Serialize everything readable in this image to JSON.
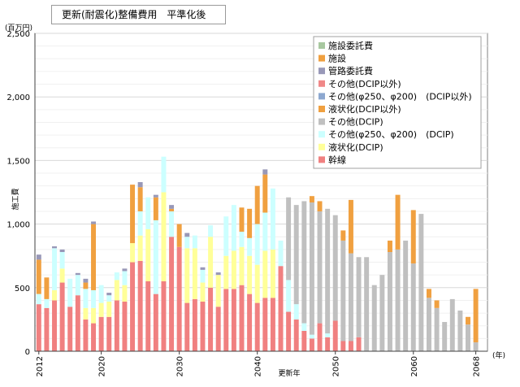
{
  "chart_data": {
    "type": "bar",
    "stacked": true,
    "title": "更新(耐震化)整備費用　平準化後",
    "ylabel": "施工費",
    "yunit": "(百万円)",
    "xlabel": "更新年",
    "xunit": "(年)",
    "ylim": [
      0,
      2500
    ],
    "yticks": [
      "0",
      "500",
      "1,000",
      "1,500",
      "2,000",
      "2,500"
    ],
    "xlim": [
      2011.5,
      2069.5
    ],
    "xticks": [
      "2012",
      "2020",
      "2030",
      "2040",
      "2050",
      "2060",
      "2068"
    ],
    "grid": true,
    "legend_position": "top-right",
    "x": [
      2012,
      2013,
      2014,
      2015,
      2016,
      2017,
      2018,
      2019,
      2020,
      2021,
      2022,
      2023,
      2024,
      2025,
      2026,
      2027,
      2028,
      2029,
      2030,
      2031,
      2032,
      2033,
      2034,
      2035,
      2036,
      2037,
      2038,
      2039,
      2040,
      2041,
      2042,
      2043,
      2044,
      2045,
      2046,
      2047,
      2048,
      2049,
      2050,
      2051,
      2052,
      2053,
      2054,
      2055,
      2056,
      2057,
      2058,
      2059,
      2060,
      2061,
      2062,
      2063,
      2064,
      2065,
      2066,
      2067,
      2068
    ],
    "series": [
      {
        "name": "幹線",
        "color": "#f08080",
        "values": [
          370,
          340,
          400,
          540,
          350,
          440,
          250,
          220,
          270,
          270,
          400,
          390,
          700,
          710,
          550,
          450,
          550,
          900,
          820,
          380,
          410,
          390,
          500,
          350,
          490,
          490,
          520,
          450,
          380,
          420,
          420,
          670,
          310,
          250,
          160,
          100,
          220,
          110,
          240,
          80,
          80,
          110,
          0,
          0,
          0,
          0,
          0,
          0,
          0,
          0,
          0,
          0,
          0,
          0,
          0,
          0,
          0
        ]
      },
      {
        "name": "液状化(DCIP)",
        "color": "#ffff99",
        "values": [
          0,
          0,
          80,
          110,
          0,
          0,
          90,
          120,
          110,
          120,
          160,
          130,
          150,
          200,
          410,
          0,
          700,
          0,
          0,
          430,
          400,
          150,
          400,
          250,
          260,
          300,
          300,
          300,
          300,
          370,
          380,
          0,
          0,
          0,
          0,
          0,
          0,
          0,
          0,
          0,
          0,
          0,
          0,
          0,
          0,
          0,
          0,
          0,
          0,
          0,
          0,
          0,
          0,
          0,
          0,
          0,
          0
        ]
      },
      {
        "name": "その他(φ250、φ200)　(DCIP)",
        "color": "#ccffff",
        "values": [
          80,
          70,
          330,
          130,
          220,
          160,
          150,
          140,
          140,
          50,
          60,
          110,
          0,
          190,
          250,
          580,
          280,
          200,
          0,
          90,
          100,
          100,
          90,
          0,
          310,
          360,
          120,
          140,
          320,
          300,
          480,
          200,
          250,
          120,
          60,
          30,
          0,
          30,
          0,
          0,
          0,
          0,
          0,
          0,
          0,
          0,
          0,
          0,
          0,
          0,
          0,
          0,
          0,
          0,
          0,
          0,
          0
        ]
      },
      {
        "name": "その他(DCIP)",
        "color": "#c0c0c0",
        "values": [
          0,
          0,
          0,
          0,
          0,
          0,
          0,
          0,
          0,
          0,
          0,
          0,
          0,
          0,
          0,
          0,
          0,
          0,
          0,
          0,
          0,
          0,
          0,
          0,
          0,
          0,
          0,
          0,
          0,
          0,
          0,
          0,
          650,
          780,
          960,
          1040,
          880,
          980,
          830,
          790,
          690,
          630,
          740,
          520,
          600,
          780,
          800,
          870,
          690,
          1080,
          420,
          340,
          230,
          410,
          320,
          210,
          70
        ]
      },
      {
        "name": "液状化(DCIP以外)",
        "color": "#f0a040",
        "values": [
          270,
          170,
          0,
          0,
          0,
          0,
          50,
          520,
          0,
          0,
          0,
          0,
          460,
          190,
          0,
          180,
          0,
          20,
          180,
          0,
          0,
          0,
          0,
          0,
          0,
          0,
          190,
          230,
          300,
          300,
          0,
          0,
          0,
          0,
          0,
          50,
          80,
          0,
          0,
          80,
          420,
          0,
          0,
          0,
          0,
          90,
          430,
          0,
          420,
          0,
          70,
          60,
          0,
          0,
          0,
          60,
          420
        ]
      },
      {
        "name": "その他(φ250、φ200)　(DCIP以外)",
        "color": "#8da8d0",
        "values": [
          0,
          0,
          0,
          0,
          0,
          0,
          0,
          0,
          0,
          0,
          0,
          0,
          0,
          0,
          0,
          0,
          0,
          0,
          0,
          0,
          0,
          0,
          0,
          0,
          0,
          0,
          0,
          0,
          0,
          0,
          0,
          0,
          0,
          0,
          0,
          0,
          0,
          0,
          0,
          0,
          0,
          0,
          0,
          0,
          0,
          0,
          0,
          0,
          0,
          0,
          0,
          0,
          0,
          0,
          0,
          0,
          0
        ]
      },
      {
        "name": "その他(DCIP以外)",
        "color": "#f08888",
        "values": [
          0,
          0,
          0,
          0,
          0,
          0,
          0,
          0,
          0,
          0,
          0,
          0,
          0,
          0,
          0,
          0,
          0,
          0,
          0,
          0,
          0,
          0,
          0,
          0,
          0,
          0,
          0,
          0,
          0,
          0,
          0,
          0,
          0,
          0,
          0,
          0,
          0,
          0,
          0,
          0,
          0,
          0,
          0,
          0,
          0,
          0,
          0,
          0,
          0,
          0,
          0,
          0,
          0,
          0,
          0,
          0,
          0
        ]
      },
      {
        "name": "管路委託費",
        "color": "#9898b8",
        "values": [
          40,
          0,
          15,
          20,
          0,
          15,
          30,
          20,
          0,
          20,
          0,
          20,
          0,
          40,
          0,
          20,
          0,
          30,
          0,
          30,
          0,
          20,
          0,
          20,
          0,
          0,
          0,
          0,
          0,
          40,
          0,
          0,
          0,
          0,
          0,
          0,
          0,
          0,
          0,
          0,
          0,
          0,
          0,
          0,
          0,
          0,
          0,
          0,
          0,
          0,
          0,
          0,
          0,
          0,
          0,
          0,
          0
        ]
      },
      {
        "name": "施設",
        "color": "#f0a040",
        "values": [
          0,
          0,
          0,
          0,
          0,
          0,
          0,
          0,
          0,
          0,
          0,
          0,
          0,
          0,
          0,
          0,
          0,
          0,
          0,
          0,
          0,
          0,
          0,
          0,
          0,
          0,
          0,
          0,
          0,
          0,
          0,
          0,
          0,
          0,
          0,
          0,
          0,
          0,
          0,
          0,
          0,
          0,
          0,
          0,
          0,
          0,
          0,
          0,
          0,
          0,
          0,
          0,
          0,
          0,
          0,
          0,
          0
        ]
      },
      {
        "name": "施設委託費",
        "color": "#a8c8a0",
        "values": [
          0,
          0,
          0,
          0,
          0,
          0,
          0,
          0,
          0,
          0,
          0,
          0,
          0,
          0,
          0,
          0,
          0,
          0,
          0,
          0,
          0,
          0,
          0,
          0,
          0,
          0,
          0,
          0,
          0,
          0,
          0,
          0,
          0,
          0,
          0,
          0,
          0,
          0,
          0,
          0,
          0,
          0,
          0,
          0,
          0,
          0,
          0,
          0,
          0,
          0,
          0,
          0,
          0,
          0,
          0,
          0,
          0
        ]
      }
    ]
  }
}
